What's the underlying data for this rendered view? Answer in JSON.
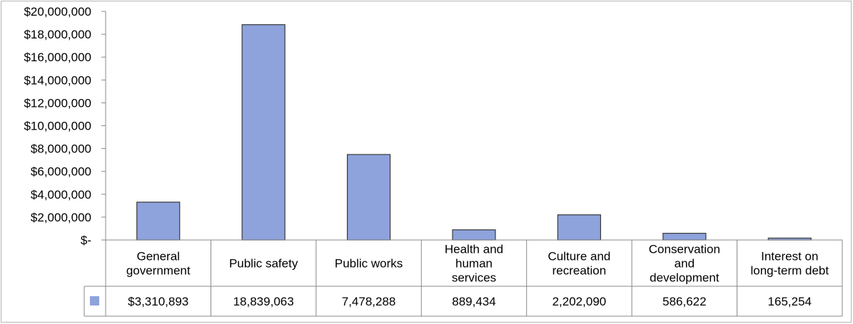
{
  "chart_data": {
    "type": "bar",
    "categories": [
      [
        "General",
        "government"
      ],
      [
        "Public safety"
      ],
      [
        "Public works"
      ],
      [
        "Health and",
        "human",
        "services"
      ],
      [
        "Culture and",
        "recreation"
      ],
      [
        "Conservation",
        "and",
        "development"
      ],
      [
        "Interest on",
        "long-term debt"
      ]
    ],
    "values": [
      3310893,
      18839063,
      7478288,
      889434,
      2202090,
      586622,
      165254
    ],
    "value_labels": [
      "$3,310,893",
      "18,839,063",
      "7,478,288",
      "889,434",
      "2,202,090",
      "586,622",
      "165,254"
    ],
    "y_tick_labels": [
      "$-",
      "$2,000,000",
      "$4,000,000",
      "$6,000,000",
      "$8,000,000",
      "$10,000,000",
      "$12,000,000",
      "$14,000,000",
      "$16,000,000",
      "$18,000,000",
      "$20,000,000"
    ],
    "ylim": [
      0,
      20000000
    ],
    "y_tick_step": 2000000,
    "grid": false,
    "legend": "data-table",
    "bar_color": "#8ea3dc",
    "bar_border_color": "#3a3a3a",
    "title": "",
    "xlabel": "",
    "ylabel": ""
  }
}
